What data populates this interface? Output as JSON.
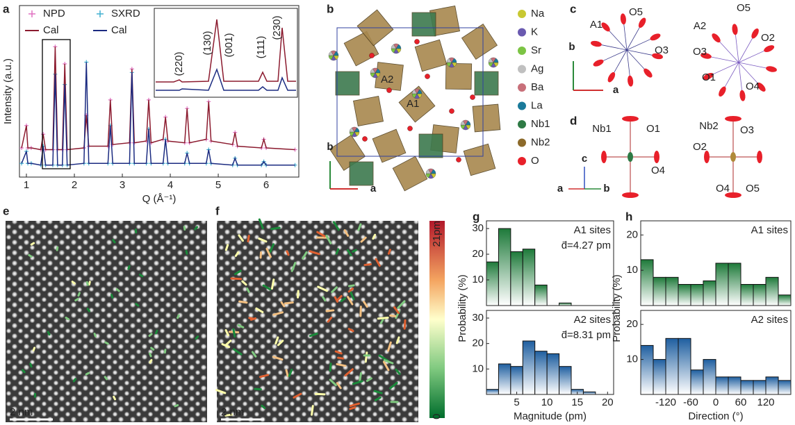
{
  "panel_labels": [
    "a",
    "b",
    "c",
    "d",
    "e",
    "f",
    "g",
    "h"
  ],
  "chart_data": [
    {
      "type": "line",
      "xlabel": "Q (Å⁻¹)",
      "ylabel": "Intensity (a.u.)",
      "x": [
        0.9,
        1.0,
        1.03,
        1.1,
        1.3,
        1.35,
        1.4,
        1.55,
        1.6,
        1.65,
        1.75,
        1.8,
        1.85,
        2.2,
        2.25,
        2.3,
        2.7,
        2.75,
        2.8,
        3.15,
        3.2,
        3.25,
        3.5,
        3.55,
        3.6,
        3.85,
        3.9,
        3.95,
        4.3,
        4.35,
        4.4,
        4.75,
        4.8,
        4.85,
        5.3,
        5.35,
        5.4,
        5.9,
        5.95,
        6.0,
        6.6
      ],
      "xlim": [
        0.855,
        6.68
      ],
      "xticks": [
        1,
        2,
        3,
        4,
        5,
        6
      ],
      "ylim": [
        0,
        10
      ],
      "series": [
        {
          "name": "NPD",
          "color": "#e070c0",
          "marker": "+",
          "values": [
            1.7,
            3.0,
            1.7,
            1.7,
            1.6,
            2.5,
            1.6,
            1.6,
            7.6,
            1.6,
            1.6,
            6.6,
            1.6,
            1.7,
            3.6,
            1.8,
            1.8,
            4.5,
            1.9,
            2.0,
            6.3,
            2.0,
            2.1,
            4.5,
            2.0,
            2.2,
            3.5,
            2.1,
            2.0,
            4.0,
            2.0,
            2.2,
            4.4,
            2.1,
            1.9,
            2.6,
            1.8,
            1.7,
            2.2,
            1.7,
            1.6
          ]
        },
        {
          "name": "SXRD",
          "color": "#40b0d0",
          "marker": "+",
          "values": [
            0.8,
            1.5,
            0.8,
            0.8,
            0.7,
            1.8,
            0.7,
            0.7,
            6.0,
            0.7,
            0.7,
            5.4,
            0.7,
            0.8,
            6.7,
            0.8,
            0.8,
            3.0,
            0.8,
            0.8,
            6.1,
            0.8,
            0.8,
            2.8,
            0.8,
            0.8,
            2.2,
            0.8,
            0.8,
            1.4,
            0.8,
            0.8,
            1.6,
            0.8,
            0.7,
            1.1,
            0.7,
            0.7,
            0.9,
            0.7,
            0.7
          ]
        },
        {
          "name": "Cal",
          "color": "#8b1a2e",
          "values": [
            1.7,
            3.0,
            1.7,
            1.7,
            1.6,
            2.5,
            1.6,
            1.6,
            7.6,
            1.6,
            1.6,
            6.6,
            1.6,
            1.7,
            3.6,
            1.8,
            1.8,
            4.5,
            1.9,
            2.0,
            6.3,
            2.0,
            2.1,
            4.5,
            2.0,
            2.2,
            3.5,
            2.1,
            2.0,
            4.0,
            2.0,
            2.2,
            4.4,
            2.1,
            1.9,
            2.6,
            1.8,
            1.7,
            2.2,
            1.7,
            1.6
          ]
        },
        {
          "name": "Cal",
          "color": "#1a2a80",
          "values": [
            0.8,
            1.5,
            0.8,
            0.8,
            0.7,
            1.8,
            0.7,
            0.7,
            6.0,
            0.7,
            0.7,
            5.4,
            0.7,
            0.8,
            6.7,
            0.8,
            0.8,
            3.0,
            0.8,
            0.8,
            6.1,
            0.8,
            0.8,
            2.8,
            0.8,
            0.8,
            2.2,
            0.8,
            0.8,
            1.4,
            0.8,
            0.8,
            1.6,
            0.8,
            0.7,
            1.1,
            0.7,
            0.7,
            0.9,
            0.7,
            0.7
          ]
        }
      ],
      "annotations": [
        "(220)",
        "(130)",
        "(001)",
        "(111)",
        "(230)"
      ]
    },
    {
      "type": "histogram",
      "ylabel": "Probability (%)",
      "bins": [
        0,
        2,
        4,
        6,
        8,
        10,
        12,
        14,
        16,
        18
      ],
      "values": [
        17,
        30,
        21,
        22,
        8,
        0,
        1,
        0,
        0
      ],
      "color": "#1e7a3a",
      "xlim": [
        0,
        21
      ],
      "ylim": [
        0,
        33
      ],
      "yticks": [
        10,
        20,
        30
      ],
      "annotations": [
        "A1 sites",
        "d̄=4.27 pm"
      ]
    },
    {
      "type": "histogram",
      "xlabel": "Magnitude (pm)",
      "bins": [
        0,
        2,
        4,
        6,
        8,
        10,
        12,
        14,
        16,
        18
      ],
      "values": [
        2,
        12,
        11,
        21,
        17,
        16,
        11,
        2,
        1
      ],
      "color": "#1f5fa0",
      "xlim": [
        0,
        21
      ],
      "xticks": [
        5,
        10,
        15,
        20
      ],
      "ylim": [
        0,
        33
      ],
      "yticks": [
        10,
        20,
        30
      ],
      "annotations": [
        "A2 sites",
        "d̄=8.31 pm"
      ]
    },
    {
      "type": "histogram",
      "ylabel": "Probability (%)",
      "bins": [
        -180,
        -150,
        -120,
        -90,
        -60,
        -30,
        0,
        30,
        60,
        90,
        120,
        150,
        180
      ],
      "values": [
        13,
        8,
        8,
        6,
        6,
        7,
        12,
        12,
        6,
        6,
        8,
        3
      ],
      "color": "#1e7a3a",
      "xlim": [
        -180,
        180
      ],
      "ylim": [
        0,
        24
      ],
      "yticks": [
        10,
        20
      ],
      "annotations": [
        "A1 sites"
      ]
    },
    {
      "type": "histogram",
      "xlabel": "Direction (°)",
      "bins": [
        -180,
        -150,
        -120,
        -90,
        -60,
        -30,
        0,
        30,
        60,
        90,
        120,
        150,
        180
      ],
      "values": [
        14,
        10,
        16,
        16,
        7,
        10,
        5,
        5,
        4,
        4,
        5,
        4
      ],
      "color": "#1f5fa0",
      "xlim": [
        -180,
        180
      ],
      "xticks": [
        -120,
        -60,
        0,
        60,
        120
      ],
      "ylim": [
        0,
        24
      ],
      "yticks": [
        10,
        20
      ],
      "annotations": [
        "A2 sites"
      ]
    }
  ],
  "structure": {
    "labels": [
      "A2",
      "A1"
    ],
    "axes": [
      "b",
      "a"
    ],
    "legend": [
      {
        "label": "Na",
        "color": "#c8c832"
      },
      {
        "label": "K",
        "color": "#6a5ab0"
      },
      {
        "label": "Sr",
        "color": "#7cc444"
      },
      {
        "label": "Ag",
        "color": "#c0c0c0"
      },
      {
        "label": "Ba",
        "color": "#c8707a"
      },
      {
        "label": "La",
        "color": "#1a7a9a"
      },
      {
        "label": "Nb1",
        "color": "#2e7a45"
      },
      {
        "label": "Nb2",
        "color": "#8c6a2a"
      },
      {
        "label": "O",
        "color": "#e8202a"
      }
    ]
  },
  "ellipsoids": {
    "c_left": [
      "A1",
      "O5",
      "O3"
    ],
    "c_right": [
      "A2",
      "O5",
      "O2",
      "O3",
      "O1",
      "O4"
    ],
    "c_axes": [
      "b",
      "a"
    ],
    "d_left": [
      "Nb1",
      "O1",
      "O4"
    ],
    "d_right": [
      "Nb2",
      "O3",
      "O2",
      "O4",
      "O5"
    ],
    "d_axes": [
      "c",
      "a",
      "b"
    ]
  },
  "maps": {
    "scale_bar": [
      "2 nm",
      "2 nm"
    ],
    "colorbar": {
      "max": "21pm",
      "min": "0"
    }
  }
}
